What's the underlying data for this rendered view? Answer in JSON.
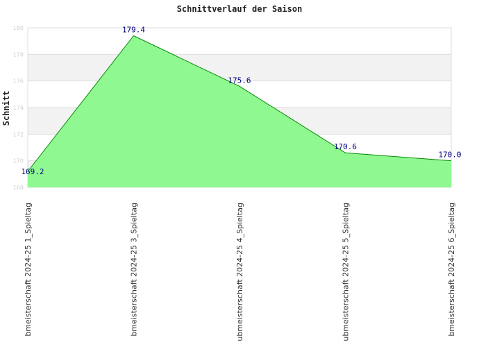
{
  "chart_data": {
    "type": "area",
    "title": "Schnittverlauf der Saison",
    "xlabel": "",
    "ylabel": "Schnitt",
    "ylim": [
      168,
      180
    ],
    "yticks": [
      "168",
      "170",
      "172",
      "174",
      "176",
      "178",
      "180"
    ],
    "grid": true,
    "categories": [
      "bmeisterschaft 2024-25   1_Spieltag",
      "bmeisterschaft 2024-25   3_Spieltag",
      "ubmeisterschaft 2024-25   4_Spieltag",
      "ubmeisterschaft 2024-25   5_Spieltag",
      "bmeisterschaft 2024-25   6_Spieltag"
    ],
    "values": [
      169.2,
      179.4,
      175.6,
      170.6,
      170.0
    ],
    "value_labels": [
      "169.2",
      "179.4",
      "175.6",
      "170.6",
      "170.0"
    ],
    "colors": {
      "fill": "#90f890",
      "line": "#008800",
      "label": "#000080",
      "band": "#f2f2f2",
      "grid": "#dddddd"
    }
  }
}
